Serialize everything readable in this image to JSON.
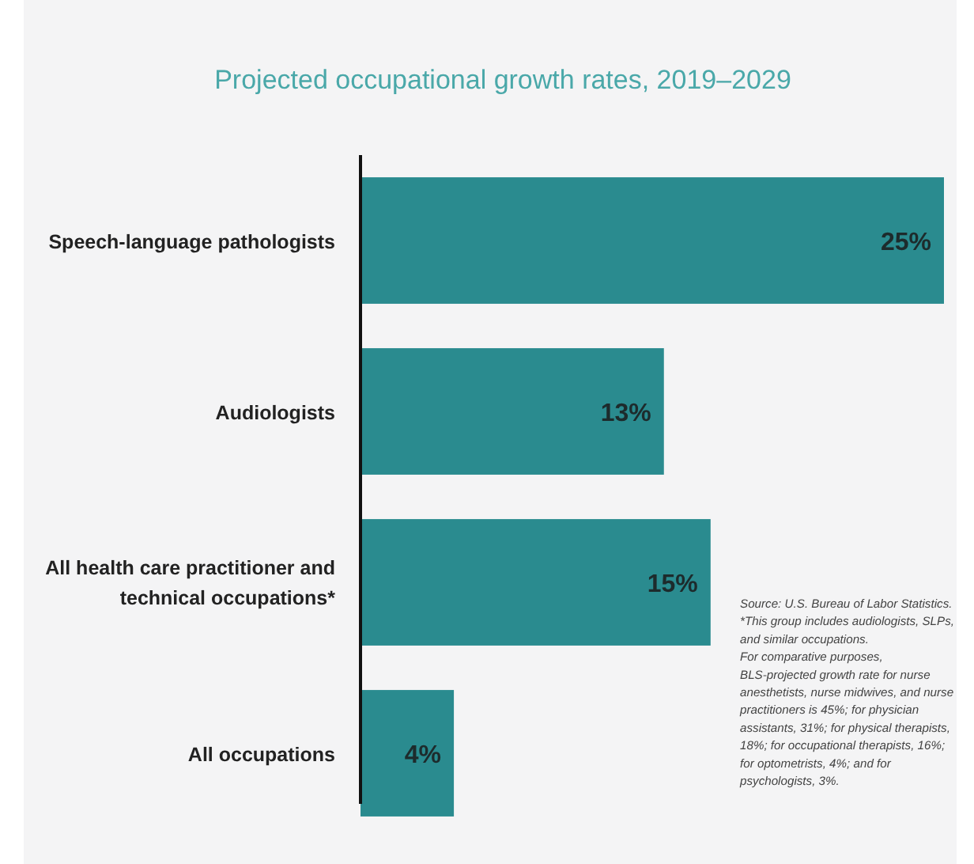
{
  "chart_data": {
    "type": "bar",
    "orientation": "horizontal",
    "title": "Projected occupational growth rates, 2019–2029",
    "categories": [
      "Speech-language pathologists",
      "Audiologists",
      "All health care practitioner and technical occupations*",
      "All occupations"
    ],
    "values": [
      25,
      13,
      15,
      4
    ],
    "value_labels": [
      "25%",
      "13%",
      "15%",
      "4%"
    ],
    "color": "#2a8b8f",
    "annotations": [
      "Source: U.S. Bureau of Labor Statistics.",
      "*This group includes audiologists, SLPs, and similar occupations.",
      "For comparative purposes, BLS-projected growth rate for nurse anesthetists, nurse midwives, and nurse practitioners is 45%; for physician assistants, 31%; for physical therapists, 18%; for occupational therapists, 16%; for optometrists, 4%; and for psychologists, 3%."
    ],
    "tick_labels": "y"
  }
}
